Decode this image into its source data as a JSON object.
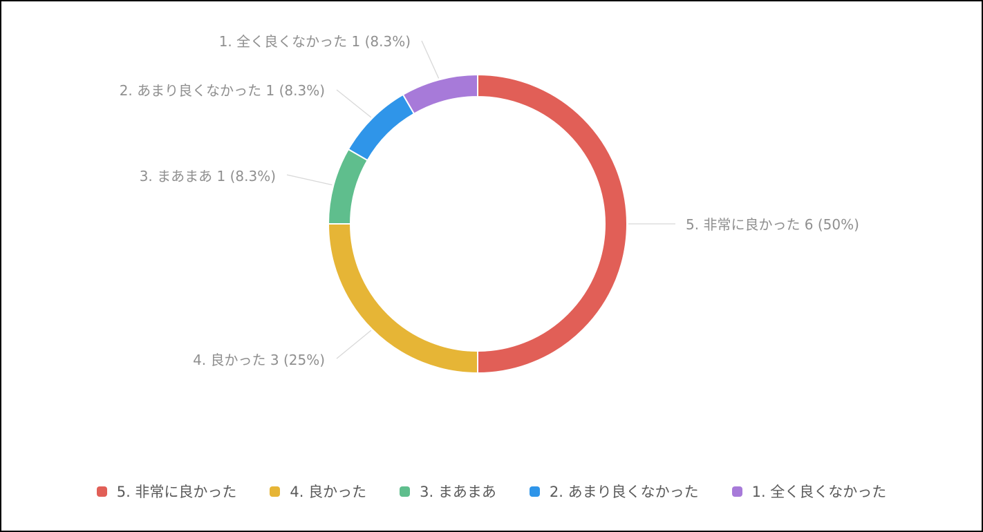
{
  "chart_data": {
    "type": "pie",
    "donut": true,
    "title": "",
    "unit_format": "{label} {value} ({pct})",
    "slices": [
      {
        "label": "5. 非常に良かった",
        "value": 6,
        "percent": "50%",
        "color": "#e15f57"
      },
      {
        "label": "4. 良かった",
        "value": 3,
        "percent": "25%",
        "color": "#e6b536"
      },
      {
        "label": "3. まあまあ",
        "value": 1,
        "percent": "8.3%",
        "color": "#5fbe8d"
      },
      {
        "label": "2. あまり良くなかった",
        "value": 1,
        "percent": "8.3%",
        "color": "#2f95e9"
      },
      {
        "label": "1. 全く良くなかった",
        "value": 1,
        "percent": "8.3%",
        "color": "#a77ad9"
      }
    ],
    "slice_labels": [
      "5. 非常に良かった 6 (50%)",
      "4. 良かった 3 (25%)",
      "3. まあまあ 1 (8.3%)",
      "2. あまり良くなかった 1 (8.3%)",
      "1. 全く良くなかった 1 (8.3%)"
    ],
    "start_angle": "12 o'clock",
    "direction": "clockwise",
    "legend_position": "bottom",
    "legend": [
      {
        "label": "5. 非常に良かった",
        "color": "#e15f57"
      },
      {
        "label": "4. 良かった",
        "color": "#e6b536"
      },
      {
        "label": "3. まあまあ",
        "color": "#5fbe8d"
      },
      {
        "label": "2. あまり良くなかった",
        "color": "#2f95e9"
      },
      {
        "label": "1. 全く良くなかった",
        "color": "#a77ad9"
      }
    ]
  }
}
